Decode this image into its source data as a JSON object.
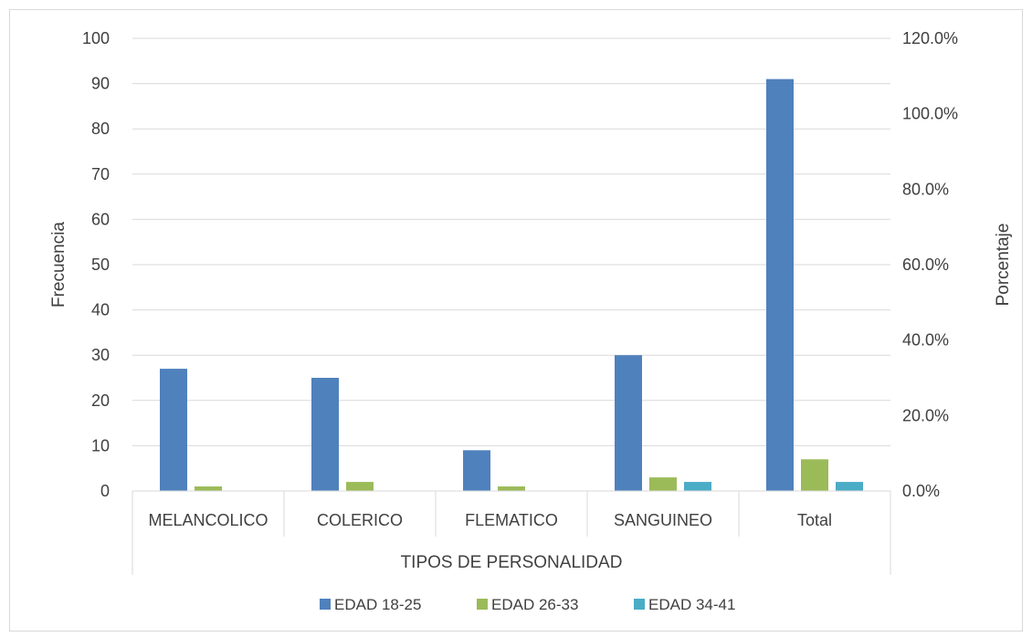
{
  "chart_data": {
    "type": "bar",
    "categories": [
      "MELANCOLICO",
      "COLERICO",
      "FLEMATICO",
      "SANGUINEO",
      "Total"
    ],
    "xlabel": "TIPOS DE PERSONALIDAD",
    "ylabel": "Frecuencia",
    "y2label": "Porcentaje",
    "ylim": [
      0,
      100
    ],
    "yticks": [
      0,
      10,
      20,
      30,
      40,
      50,
      60,
      70,
      80,
      90,
      100
    ],
    "y2lim": [
      0,
      120
    ],
    "y2ticks": [
      "0.0%",
      "20.0%",
      "40.0%",
      "60.0%",
      "80.0%",
      "100.0%",
      "120.0%"
    ],
    "series": [
      {
        "name": "EDAD 18-25",
        "color": "#4f81bd",
        "values": [
          27,
          25,
          9,
          30,
          91
        ]
      },
      {
        "name": "EDAD 26-33",
        "color": "#9bbb59",
        "values": [
          1,
          2,
          1,
          3,
          7
        ]
      },
      {
        "name": "EDAD 34-41",
        "color": "#4bacc6",
        "values": [
          0,
          0,
          0,
          2,
          2
        ]
      }
    ],
    "grid": true,
    "legend": "bottom"
  }
}
